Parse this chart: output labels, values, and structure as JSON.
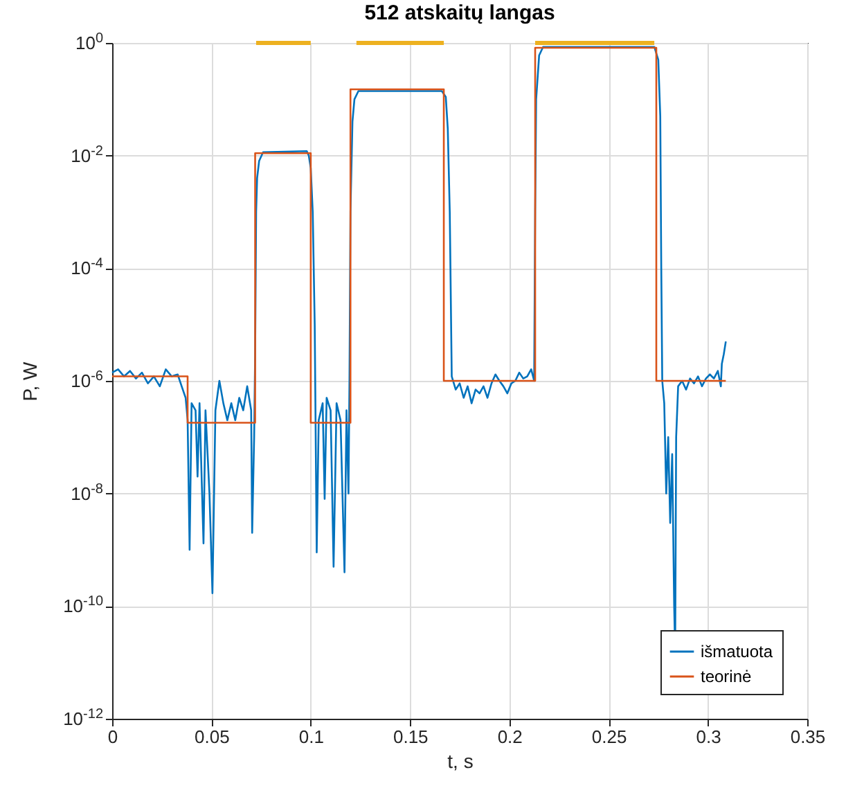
{
  "chart_data": {
    "type": "line",
    "title": "512 atskaitų langas",
    "xlabel": "t, s",
    "ylabel": "P, W",
    "log": "y",
    "grid": true,
    "legend": "bottom right",
    "xlim": [
      0,
      0.35
    ],
    "xticks": [
      0,
      0.05,
      0.1,
      0.15,
      0.2,
      0.25,
      0.3,
      0.35
    ],
    "ylim": [
      1e-12,
      1
    ],
    "yticks": [
      {
        "value": 1e-12,
        "label": "10$^{-12}$"
      },
      {
        "value": 1e-10,
        "label": "10$^{-10}$"
      },
      {
        "value": 1e-08,
        "label": "10$^{-8}$"
      },
      {
        "value": 1e-06,
        "label": "10$^{-6}$"
      },
      {
        "value": 0.0001,
        "label": "10$^{-4}$"
      },
      {
        "value": 0.01,
        "label": "10$^{-2}$"
      },
      {
        "value": 1,
        "label": "10$^{0}$"
      }
    ],
    "series": [
      {
        "name": "išmatuota",
        "type": "line",
        "color": "#0072bd",
        "x": [
          0,
          0.003,
          0.006,
          0.009,
          0.012,
          0.015,
          0.018,
          0.021,
          0.024,
          0.027,
          0.03,
          0.033,
          0.035,
          0.037,
          0.038,
          0.039,
          0.04,
          0.042,
          0.043,
          0.044,
          0.046,
          0.047,
          0.049,
          0.0505,
          0.052,
          0.054,
          0.056,
          0.058,
          0.06,
          0.062,
          0.064,
          0.066,
          0.068,
          0.07,
          0.0705,
          0.0715,
          0.072,
          0.0725,
          0.073,
          0.074,
          0.076,
          0.098,
          0.099,
          0.1,
          0.101,
          0.102,
          0.103,
          0.104,
          0.106,
          0.107,
          0.108,
          0.11,
          0.1115,
          0.113,
          0.115,
          0.117,
          0.118,
          0.119,
          0.1195,
          0.12,
          0.121,
          0.122,
          0.124,
          0.166,
          0.168,
          0.169,
          0.17,
          0.171,
          0.173,
          0.175,
          0.177,
          0.179,
          0.181,
          0.183,
          0.185,
          0.187,
          0.189,
          0.191,
          0.193,
          0.195,
          0.197,
          0.199,
          0.201,
          0.203,
          0.205,
          0.207,
          0.209,
          0.211,
          0.2125,
          0.213,
          0.2135,
          0.215,
          0.217,
          0.273,
          0.275,
          0.276,
          0.2765,
          0.277,
          0.278,
          0.279,
          0.28,
          0.281,
          0.282,
          0.283,
          0.2835,
          0.284,
          0.285,
          0.287,
          0.289,
          0.291,
          0.293,
          0.295,
          0.297,
          0.299,
          0.301,
          0.303,
          0.305,
          0.3065,
          0.307,
          0.308,
          0.309
        ],
        "values": [
          1.4e-06,
          1.6e-06,
          1.2e-06,
          1.5e-06,
          1.1e-06,
          1.4e-06,
          9e-07,
          1.2e-06,
          8e-07,
          1.6e-06,
          1.2e-06,
          1.3e-06,
          8e-07,
          5e-07,
          2e-07,
          1e-09,
          4e-07,
          3e-07,
          2e-08,
          4e-07,
          1.3e-09,
          3e-07,
          1e-08,
          1.7e-10,
          3e-07,
          1e-06,
          4e-07,
          2e-07,
          4e-07,
          2e-07,
          5e-07,
          3e-07,
          8e-07,
          3e-07,
          2e-09,
          1e-07,
          3e-06,
          0.001,
          0.004,
          0.008,
          0.0115,
          0.012,
          0.01,
          0.006,
          0.001,
          1e-05,
          9e-10,
          2e-07,
          4e-07,
          8e-09,
          5e-07,
          3e-07,
          5e-10,
          4e-07,
          2e-07,
          4e-10,
          3e-07,
          1e-08,
          1e-06,
          0.001,
          0.04,
          0.1,
          0.14,
          0.14,
          0.11,
          0.03,
          0.001,
          1.2e-06,
          7e-07,
          9e-07,
          5e-07,
          8e-07,
          4e-07,
          7e-07,
          6e-07,
          8e-07,
          5e-07,
          9e-07,
          1.3e-06,
          1e-06,
          8e-07,
          6e-07,
          9e-07,
          1e-06,
          1.4e-06,
          1.1e-06,
          1.2e-06,
          1.6e-06,
          1e-06,
          0.001,
          0.1,
          0.6,
          0.85,
          0.85,
          0.5,
          0.05,
          0.0001,
          1e-06,
          4e-07,
          1e-08,
          1e-07,
          3e-09,
          5e-08,
          1e-10,
          1.5e-11,
          1e-07,
          8e-07,
          1e-06,
          7e-07,
          1.1e-06,
          9e-07,
          1.2e-06,
          8e-07,
          1.1e-06,
          1.3e-06,
          1.1e-06,
          1.5e-06,
          8e-07,
          2e-06,
          3e-06,
          5e-06
        ]
      },
      {
        "name": "teorinė",
        "type": "step",
        "color": "#d95319",
        "x": [
          0,
          0.038,
          0.072,
          0.1,
          0.12,
          0.167,
          0.213,
          0.274,
          0.309
        ],
        "values": [
          1.2e-06,
          1.8e-07,
          0.011,
          1.8e-07,
          0.15,
          1e-06,
          0.82,
          1e-06,
          1e-06
        ]
      },
      {
        "type": "line",
        "color": "#edb120",
        "x": [
          0.0725,
          0.1,
          0.11,
          0.123,
          0.167,
          0.19,
          0.213,
          0.273
        ],
        "values": [
          1,
          1,
          null,
          1,
          1,
          null,
          1,
          1
        ]
      }
    ]
  }
}
